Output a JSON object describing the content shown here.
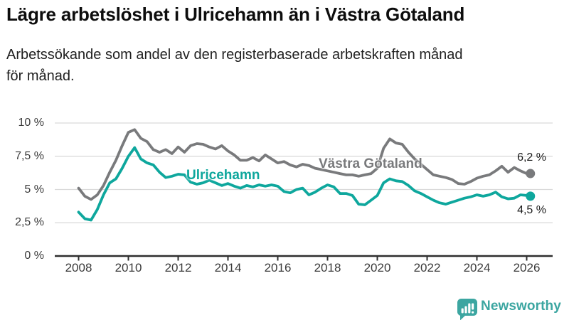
{
  "header": {
    "title_note": "title and subtitle live in chart_data"
  },
  "chart_data": {
    "type": "line",
    "title": "Lägre arbetslöshet i Ulricehamn än i Västra Götaland",
    "subtitle": "Arbetssökande som andel av den registerbaserade arbetskraften månad\nför månad.",
    "xlabel": "",
    "ylabel": "",
    "ylim": [
      0,
      10.4
    ],
    "xlim": [
      2007.8,
      2026.6
    ],
    "grid": "horizontal",
    "legend_position": "inline-labels-on-lines",
    "y_axis": {
      "ticks": [
        {
          "value": 0,
          "label": "0 %"
        },
        {
          "value": 2.5,
          "label": "2,5 %"
        },
        {
          "value": 5,
          "label": "5 %"
        },
        {
          "value": 7.5,
          "label": "7,5 %"
        },
        {
          "value": 10,
          "label": "10 %"
        }
      ]
    },
    "x_axis": {
      "ticks": [
        {
          "value": 2008,
          "label": "2008"
        },
        {
          "value": 2010,
          "label": "2010"
        },
        {
          "value": 2012,
          "label": "2012"
        },
        {
          "value": 2014,
          "label": "2014"
        },
        {
          "value": 2016,
          "label": "2016"
        },
        {
          "value": 2018,
          "label": "2018"
        },
        {
          "value": 2020,
          "label": "2020"
        },
        {
          "value": 2022,
          "label": "2022"
        },
        {
          "value": 2024,
          "label": "2024"
        },
        {
          "value": 2026,
          "label": "2026"
        }
      ]
    },
    "x": [
      2008,
      2008.25,
      2008.5,
      2008.75,
      2009,
      2009.25,
      2009.5,
      2009.75,
      2010,
      2010.25,
      2010.5,
      2010.75,
      2011,
      2011.25,
      2011.5,
      2011.75,
      2012,
      2012.25,
      2012.5,
      2012.75,
      2013,
      2013.25,
      2013.5,
      2013.75,
      2014,
      2014.25,
      2014.5,
      2014.75,
      2015,
      2015.25,
      2015.5,
      2015.75,
      2016,
      2016.25,
      2016.5,
      2016.75,
      2017,
      2017.25,
      2017.5,
      2017.75,
      2018,
      2018.25,
      2018.5,
      2018.75,
      2019,
      2019.25,
      2019.5,
      2019.75,
      2020,
      2020.25,
      2020.5,
      2020.75,
      2021,
      2021.25,
      2021.5,
      2021.75,
      2022,
      2022.25,
      2022.5,
      2022.75,
      2023,
      2023.25,
      2023.5,
      2023.75,
      2024,
      2024.25,
      2024.5,
      2024.75,
      2025,
      2025.25,
      2025.5,
      2025.75,
      2026,
      2026.15
    ],
    "series": [
      {
        "name": "Västra Götaland",
        "color": "#797a7c",
        "end_label": "6,2 %",
        "end_value": 6.2,
        "values": [
          5.1,
          4.5,
          4.25,
          4.6,
          5.3,
          6.3,
          7.2,
          8.3,
          9.3,
          9.5,
          8.85,
          8.6,
          8.0,
          7.8,
          8.0,
          7.7,
          8.2,
          7.8,
          8.3,
          8.45,
          8.4,
          8.2,
          8.05,
          8.3,
          7.9,
          7.6,
          7.2,
          7.2,
          7.4,
          7.15,
          7.6,
          7.3,
          7.0,
          7.1,
          6.85,
          6.7,
          6.9,
          6.8,
          6.6,
          6.5,
          6.4,
          6.3,
          6.2,
          6.1,
          6.1,
          6.0,
          6.1,
          6.2,
          6.6,
          8.1,
          8.8,
          8.5,
          8.4,
          7.8,
          7.3,
          6.9,
          6.5,
          6.1,
          6.0,
          5.9,
          5.75,
          5.45,
          5.4,
          5.6,
          5.85,
          6.0,
          6.1,
          6.4,
          6.75,
          6.3,
          6.65,
          6.4,
          6.2,
          6.2
        ]
      },
      {
        "name": "Ulricehamn",
        "color": "#0ea79d",
        "end_label": "4,5 %",
        "end_value": 4.5,
        "values": [
          3.3,
          2.8,
          2.7,
          3.5,
          4.6,
          5.5,
          5.8,
          6.6,
          7.5,
          8.15,
          7.3,
          7.0,
          6.85,
          6.3,
          5.9,
          6.0,
          6.15,
          6.1,
          5.55,
          5.4,
          5.5,
          5.7,
          5.5,
          5.3,
          5.45,
          5.25,
          5.1,
          5.3,
          5.2,
          5.35,
          5.25,
          5.35,
          5.25,
          4.85,
          4.75,
          5.0,
          5.1,
          4.6,
          4.8,
          5.1,
          5.35,
          5.2,
          4.7,
          4.7,
          4.55,
          3.9,
          3.85,
          4.2,
          4.55,
          5.5,
          5.8,
          5.65,
          5.6,
          5.3,
          4.9,
          4.7,
          4.45,
          4.2,
          4.0,
          3.9,
          4.05,
          4.2,
          4.35,
          4.45,
          4.6,
          4.5,
          4.6,
          4.8,
          4.45,
          4.3,
          4.35,
          4.6,
          4.55,
          4.5
        ]
      }
    ]
  },
  "styles": {
    "gridline_color": "#d9d9d9",
    "axis_color": "#2f2f2f",
    "line_width": 3.8,
    "end_dot_radius": 6.5
  },
  "footer": {
    "brand": "Newsworthy"
  }
}
